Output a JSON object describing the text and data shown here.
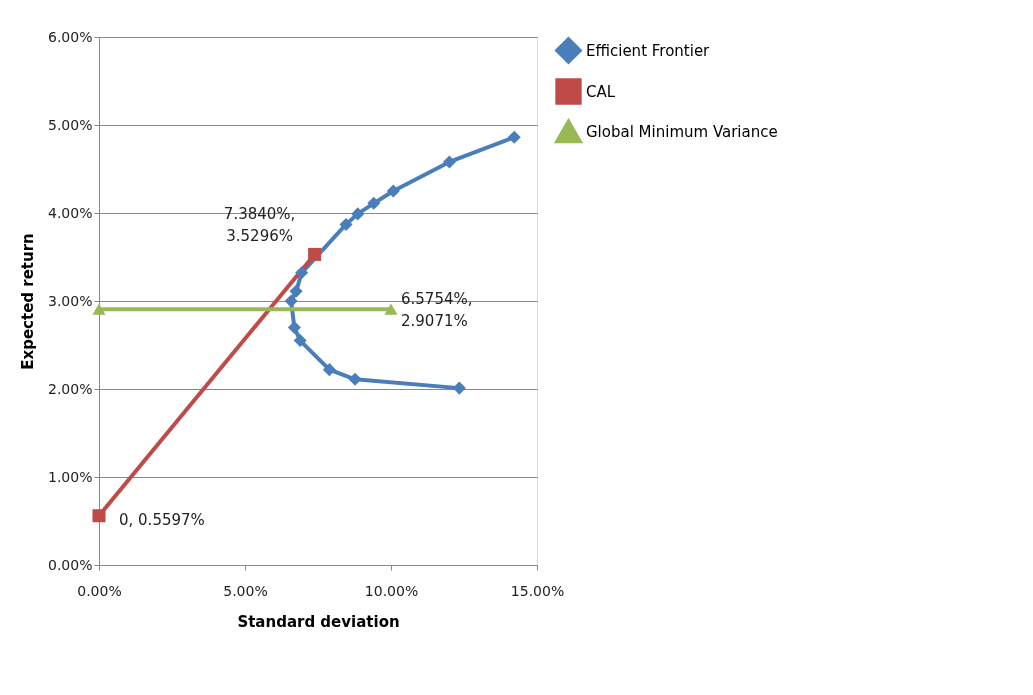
{
  "chart_data": {
    "type": "line",
    "xlabel": "Standard deviation",
    "ylabel": "Expected return",
    "xlim": [
      0,
      15
    ],
    "xticks": [
      {
        "value": 0,
        "label": "0.00%"
      },
      {
        "value": 5,
        "label": "5.00%"
      },
      {
        "value": 10,
        "label": "10.00%"
      },
      {
        "value": 15,
        "label": "15.00%"
      }
    ],
    "ylim": [
      0,
      6
    ],
    "yticks": [
      {
        "value": 0,
        "label": "0.00%"
      },
      {
        "value": 1,
        "label": "1.00%"
      },
      {
        "value": 2,
        "label": "2.00%"
      },
      {
        "value": 3,
        "label": "3.00%"
      },
      {
        "value": 4,
        "label": "4.00%"
      },
      {
        "value": 5,
        "label": "5.00%"
      },
      {
        "value": 6,
        "label": "6.00%"
      }
    ],
    "grid": "y",
    "legend": "right",
    "series": [
      {
        "name": "Efficient Frontier",
        "color": "#4a7ebb",
        "marker": "diamond",
        "x": [
          14.22,
          12.0,
          10.08,
          9.41,
          8.86,
          8.46,
          6.94,
          6.75,
          6.58,
          6.69,
          6.89,
          7.89,
          8.77,
          12.34
        ],
        "values": [
          4.86,
          4.58,
          4.25,
          4.11,
          3.99,
          3.87,
          3.32,
          3.11,
          3.0,
          2.7,
          2.55,
          2.22,
          2.11,
          2.01
        ]
      },
      {
        "name": "CAL",
        "color": "#be4b48",
        "marker": "square",
        "x": [
          0,
          7.384
        ],
        "values": [
          0.5597,
          3.5296
        ]
      },
      {
        "name": "Global Minimum Variance",
        "color": "#98b954",
        "marker": "triangle",
        "x": [
          0,
          10
        ],
        "values": [
          2.9071,
          2.9071
        ]
      }
    ],
    "annotations": [
      {
        "text": "7.3840%,\n3.5296%",
        "x": 7.384,
        "y": 3.5296
      },
      {
        "text": "6.5754%,\n2.9071%",
        "x": 10,
        "y": 2.9071
      },
      {
        "text": "0, 0.5597%",
        "x": 0,
        "y": 0.5597
      }
    ]
  }
}
